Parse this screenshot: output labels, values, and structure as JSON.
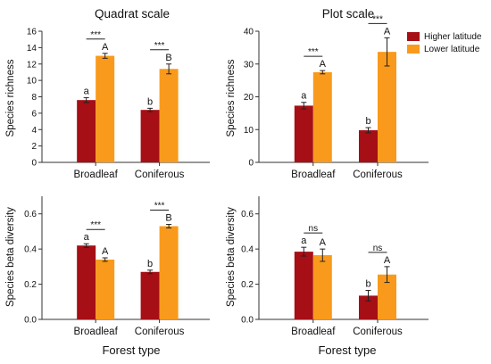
{
  "chart_data": [
    {
      "type": "bar",
      "title": "Quadrat scale",
      "ylabel": "Species richness",
      "xlabel": "",
      "ylim": [
        0,
        16
      ],
      "yticks": [
        "0",
        "2",
        "4",
        "6",
        "8",
        "10",
        "12",
        "14",
        "16"
      ],
      "categories": [
        "Broadleaf",
        "Coniferous"
      ],
      "series": [
        {
          "name": "Higher latitude",
          "values": [
            7.6,
            6.4
          ],
          "errors": [
            0.3,
            0.2
          ],
          "letters": [
            "a",
            "b"
          ]
        },
        {
          "name": "Lower latitude",
          "values": [
            13.0,
            11.4
          ],
          "errors": [
            0.3,
            0.6
          ],
          "letters": [
            "A",
            "B"
          ]
        }
      ],
      "significance": [
        "***",
        "***"
      ]
    },
    {
      "type": "bar",
      "title": "Plot scale",
      "ylabel": "Species richness",
      "xlabel": "",
      "ylim": [
        0,
        40
      ],
      "yticks": [
        "0",
        "10",
        "20",
        "30",
        "40"
      ],
      "categories": [
        "Broadleaf",
        "Coniferous"
      ],
      "series": [
        {
          "name": "Higher latitude",
          "values": [
            17.3,
            9.8
          ],
          "errors": [
            1.0,
            0.8
          ],
          "letters": [
            "a",
            "b"
          ]
        },
        {
          "name": "Lower latitude",
          "values": [
            27.5,
            33.7
          ],
          "errors": [
            0.5,
            4.3
          ],
          "letters": [
            "A",
            "A"
          ]
        }
      ],
      "significance": [
        "***",
        "***"
      ],
      "legend": {
        "placement": "top-right",
        "entries": [
          "Higher latitude",
          "Lower latitude"
        ]
      }
    },
    {
      "type": "bar",
      "title": "",
      "ylabel": "Species beta diversity",
      "xlabel": "Forest type",
      "ylim": [
        0,
        0.7
      ],
      "yticks": [
        "0.0",
        "0.2",
        "0.4",
        "0.6"
      ],
      "categories": [
        "Broadleaf",
        "Coniferous"
      ],
      "series": [
        {
          "name": "Higher latitude",
          "values": [
            0.42,
            0.27
          ],
          "errors": [
            0.01,
            0.01
          ],
          "letters": [
            "a",
            "b"
          ]
        },
        {
          "name": "Lower latitude",
          "values": [
            0.34,
            0.53
          ],
          "errors": [
            0.01,
            0.01
          ],
          "letters": [
            "A",
            "B"
          ]
        }
      ],
      "significance": [
        "***",
        "***"
      ]
    },
    {
      "type": "bar",
      "title": "",
      "ylabel": "Species beta diversity",
      "xlabel": "Forest type",
      "ylim": [
        0,
        0.7
      ],
      "yticks": [
        "0.0",
        "0.2",
        "0.4",
        "0.6"
      ],
      "categories": [
        "Broadleaf",
        "Coniferous"
      ],
      "series": [
        {
          "name": "Higher latitude",
          "values": [
            0.385,
            0.135
          ],
          "errors": [
            0.025,
            0.03
          ],
          "letters": [
            "a",
            "b"
          ]
        },
        {
          "name": "Lower latitude",
          "values": [
            0.365,
            0.255
          ],
          "errors": [
            0.035,
            0.045
          ],
          "letters": [
            "A",
            "A"
          ]
        }
      ],
      "significance": [
        "ns",
        "ns"
      ]
    }
  ],
  "colors": {
    "higher": "#a50f15",
    "lower": "#f99a1c",
    "axis": "#333333"
  }
}
